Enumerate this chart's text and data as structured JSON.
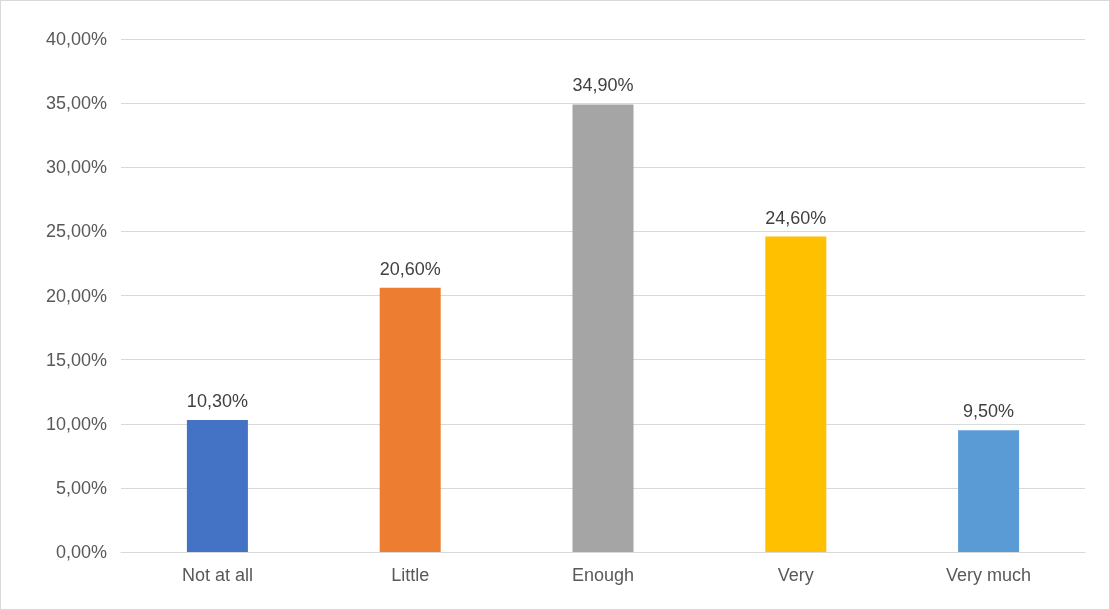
{
  "chart_data": {
    "type": "bar",
    "categories": [
      "Not at all",
      "Little",
      "Enough",
      "Very",
      "Very much"
    ],
    "values": [
      10.3,
      20.6,
      34.9,
      24.6,
      9.5
    ],
    "colors": [
      "#4472c4",
      "#ed7d31",
      "#a5a5a5",
      "#ffc000",
      "#5b9bd5"
    ],
    "value_labels": [
      "10,30%",
      "20,60%",
      "34,90%",
      "24,60%",
      "9,50%"
    ],
    "ylim": [
      0,
      40
    ],
    "yticks": [
      {
        "value": 0,
        "label": "0,00%"
      },
      {
        "value": 5,
        "label": "5,00%"
      },
      {
        "value": 10,
        "label": "10,00%"
      },
      {
        "value": 15,
        "label": "15,00%"
      },
      {
        "value": 20,
        "label": "20,00%"
      },
      {
        "value": 25,
        "label": "25,00%"
      },
      {
        "value": 30,
        "label": "30,00%"
      },
      {
        "value": 35,
        "label": "35,00%"
      },
      {
        "value": 40,
        "label": "40,00%"
      }
    ],
    "grid": "y"
  }
}
